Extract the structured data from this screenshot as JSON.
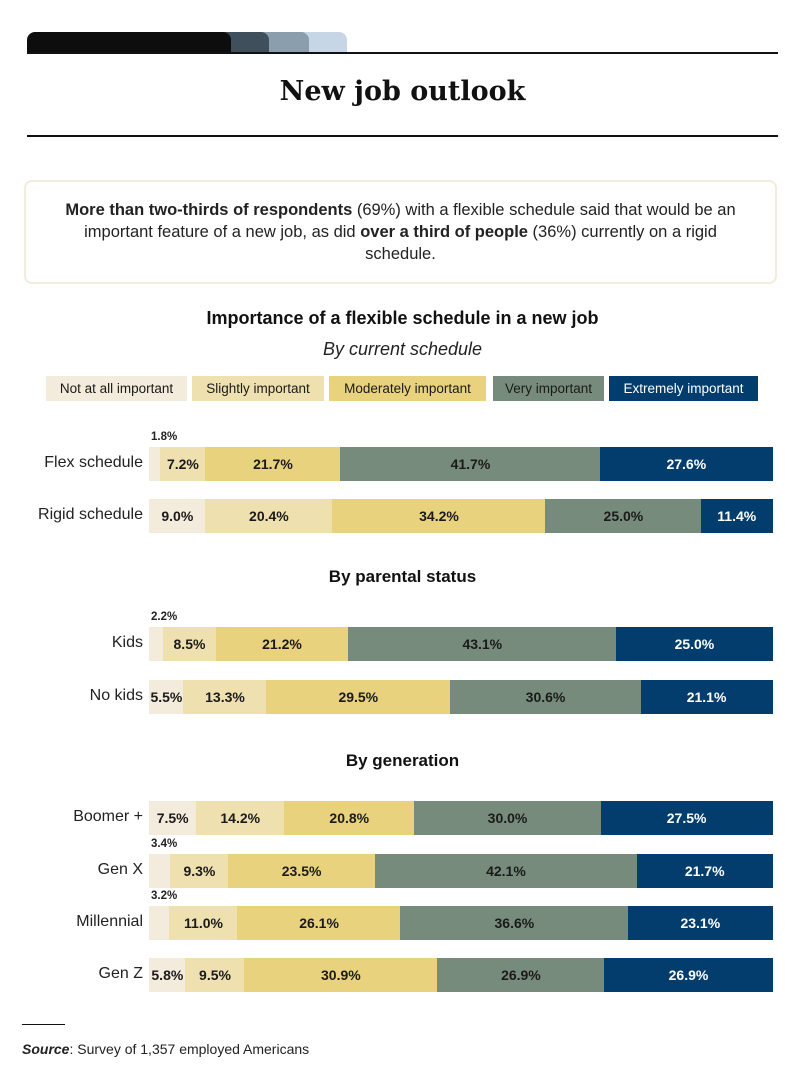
{
  "page": {
    "title": "New job outlook",
    "summary": {
      "bold_1": "More than two-thirds of respondents",
      "text_1": " (69%) with a flexible schedule said that would be an important feature of a new job, as did ",
      "bold_2": "over a third of people",
      "text_2": " (36%) currently on a rigid schedule."
    },
    "source": {
      "label": "Source",
      "text": ": Survey of 1,357 employed Americans"
    }
  },
  "colors": {
    "not_at_all": "#f3ebdb",
    "slightly": "#efe0b0",
    "moderately": "#e8d27e",
    "very": "#778b7c",
    "extremely": "#023d6e",
    "tabs": [
      "#0d0d0d",
      "#3f505c",
      "#8a9eae",
      "#c6d6e6"
    ]
  },
  "chart_data": {
    "type": "bar",
    "orientation": "horizontal-stacked-100",
    "title": "Importance of a flexible schedule in a new job",
    "subtitle": "By current schedule",
    "legend": [
      "Not at all important",
      "Slightly important",
      "Moderately important",
      "Very important",
      "Extremely important"
    ],
    "groups": [
      {
        "name": "By current schedule",
        "rows": [
          {
            "label": "Flex schedule",
            "values": [
              1.8,
              7.2,
              21.7,
              41.7,
              27.6
            ],
            "display": [
              "1.8%",
              "7.2%",
              "21.7%",
              "41.7%",
              "27.6%"
            ]
          },
          {
            "label": "Rigid schedule",
            "values": [
              9.0,
              20.4,
              34.2,
              25.0,
              11.4
            ],
            "display": [
              "9.0%",
              "20.4%",
              "34.2%",
              "25.0%",
              "11.4%"
            ]
          }
        ]
      },
      {
        "name": "By parental status",
        "rows": [
          {
            "label": "Kids",
            "values": [
              2.2,
              8.5,
              21.2,
              43.1,
              25.0
            ],
            "display": [
              "2.2%",
              "8.5%",
              "21.2%",
              "43.1%",
              "25.0%"
            ]
          },
          {
            "label": "No kids",
            "values": [
              5.5,
              13.3,
              29.5,
              30.6,
              21.1
            ],
            "display": [
              "5.5%",
              "13.3%",
              "29.5%",
              "30.6%",
              "21.1%"
            ]
          }
        ]
      },
      {
        "name": "By generation",
        "rows": [
          {
            "label": "Boomer +",
            "values": [
              7.5,
              14.2,
              20.8,
              30.0,
              27.5
            ],
            "display": [
              "7.5%",
              "14.2%",
              "20.8%",
              "30.0%",
              "27.5%"
            ]
          },
          {
            "label": "Gen X",
            "values": [
              3.4,
              9.3,
              23.5,
              42.1,
              21.7
            ],
            "display": [
              "3.4%",
              "9.3%",
              "23.5%",
              "42.1%",
              "21.7%"
            ]
          },
          {
            "label": "Millennial",
            "values": [
              3.2,
              11.0,
              26.1,
              36.6,
              23.1
            ],
            "display": [
              "3.2%",
              "11.0%",
              "26.1%",
              "36.6%",
              "23.1%"
            ]
          },
          {
            "label": "Gen Z",
            "values": [
              5.8,
              9.5,
              30.9,
              26.9,
              26.9
            ],
            "display": [
              "5.8%",
              "9.5%",
              "30.9%",
              "26.9%",
              "26.9%"
            ]
          }
        ]
      }
    ]
  }
}
